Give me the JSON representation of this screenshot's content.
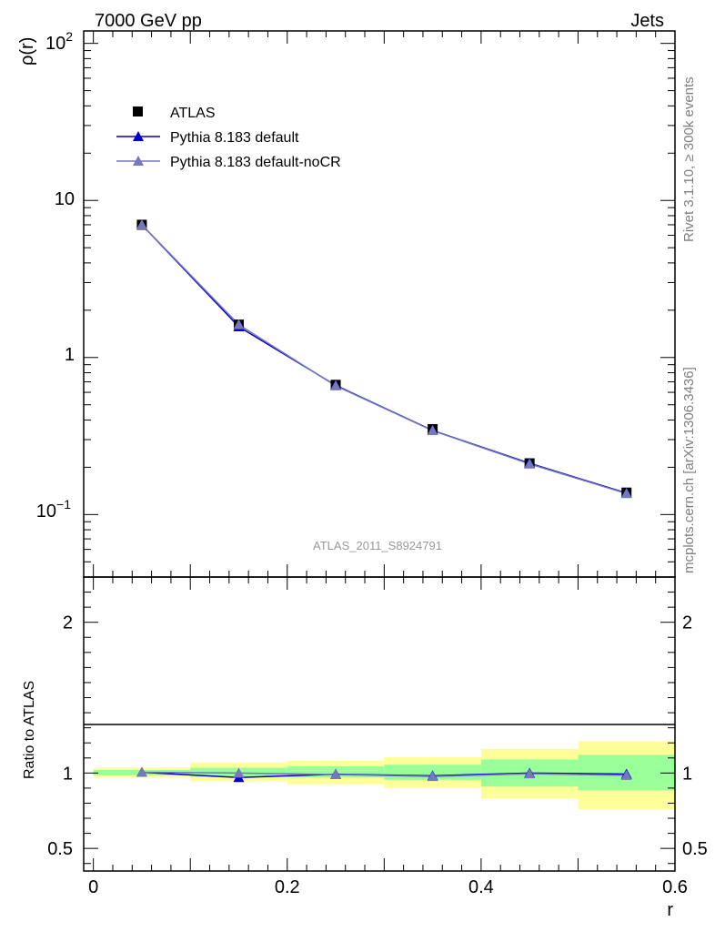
{
  "header": {
    "left_title": "7000 GeV pp",
    "right_title": "Jets"
  },
  "side_text": {
    "rivet": "Rivet 3.1.10, ≥ 300k events",
    "source": "mcplots.cern.ch [arXiv:1306.3436]"
  },
  "watermark": "ATLAS_2011_S8924791",
  "colors": {
    "atlas": "#000000",
    "pythia_default": "#0000cc",
    "pythia_nocr": "#7777bb",
    "band_inner": "#99ff99",
    "band_outer": "#ffff99"
  },
  "legend": [
    {
      "label": "ATLAS",
      "style": "square"
    },
    {
      "label": "Pythia 8.183 default",
      "style": "triangle"
    },
    {
      "label": "Pythia 8.183 default-noCR",
      "style": "triangle"
    }
  ],
  "chart_data": [
    {
      "type": "line",
      "panel": "main",
      "ylabel": "ρ(r)",
      "yscale": "log",
      "ylim": [
        0.04,
        120
      ],
      "xlim": [
        -0.01,
        0.6
      ],
      "ytick_labels": {
        "t100": "10",
        "t100_sup": "2",
        "t10": "10",
        "t1": "1",
        "t01": "10",
        "t01_sup": "−1"
      },
      "x": [
        0.05,
        0.15,
        0.25,
        0.35,
        0.45,
        0.55
      ],
      "series": [
        {
          "name": "ATLAS",
          "values": [
            7.0,
            1.62,
            0.67,
            0.35,
            0.212,
            0.138
          ]
        },
        {
          "name": "Pythia 8.183 default",
          "values": [
            7.0,
            1.57,
            0.665,
            0.343,
            0.212,
            0.137
          ]
        },
        {
          "name": "Pythia 8.183 default-noCR",
          "values": [
            7.0,
            1.62,
            0.66,
            0.342,
            0.21,
            0.136
          ]
        }
      ]
    },
    {
      "type": "line",
      "panel": "ratio",
      "ylabel": "Ratio to ATLAS",
      "xlabel": "r",
      "ylim": [
        0.35,
        2.3
      ],
      "xlim": [
        -0.01,
        0.6
      ],
      "ytick_labels": [
        "0.5",
        "1",
        "2"
      ],
      "yticks": [
        0.5,
        1,
        2
      ],
      "xtick_labels": [
        "0",
        "0.2",
        "0.4",
        "0.6"
      ],
      "xticks": [
        0,
        0.2,
        0.4,
        0.6
      ],
      "bins": [
        [
          0.0,
          0.1
        ],
        [
          0.1,
          0.2
        ],
        [
          0.2,
          0.3
        ],
        [
          0.3,
          0.4
        ],
        [
          0.4,
          0.5
        ],
        [
          0.5,
          0.6
        ]
      ],
      "band_inner": [
        [
          0.985,
          1.02
        ],
        [
          0.975,
          1.035
        ],
        [
          0.97,
          1.045
        ],
        [
          0.955,
          1.055
        ],
        [
          0.91,
          1.09
        ],
        [
          0.885,
          1.12
        ]
      ],
      "band_outer": [
        [
          0.97,
          1.035
        ],
        [
          0.945,
          1.07
        ],
        [
          0.925,
          1.08
        ],
        [
          0.9,
          1.105
        ],
        [
          0.83,
          1.16
        ],
        [
          0.76,
          1.21
        ]
      ],
      "x": [
        0.05,
        0.15,
        0.25,
        0.35,
        0.45,
        0.55
      ],
      "series": [
        {
          "name": "Pythia 8.183 default",
          "values": [
            1.005,
            0.97,
            0.992,
            0.982,
            1.0,
            0.993
          ]
        },
        {
          "name": "Pythia 8.183 default-noCR",
          "values": [
            1.005,
            1.0,
            0.99,
            0.977,
            0.995,
            0.985
          ]
        }
      ]
    }
  ]
}
